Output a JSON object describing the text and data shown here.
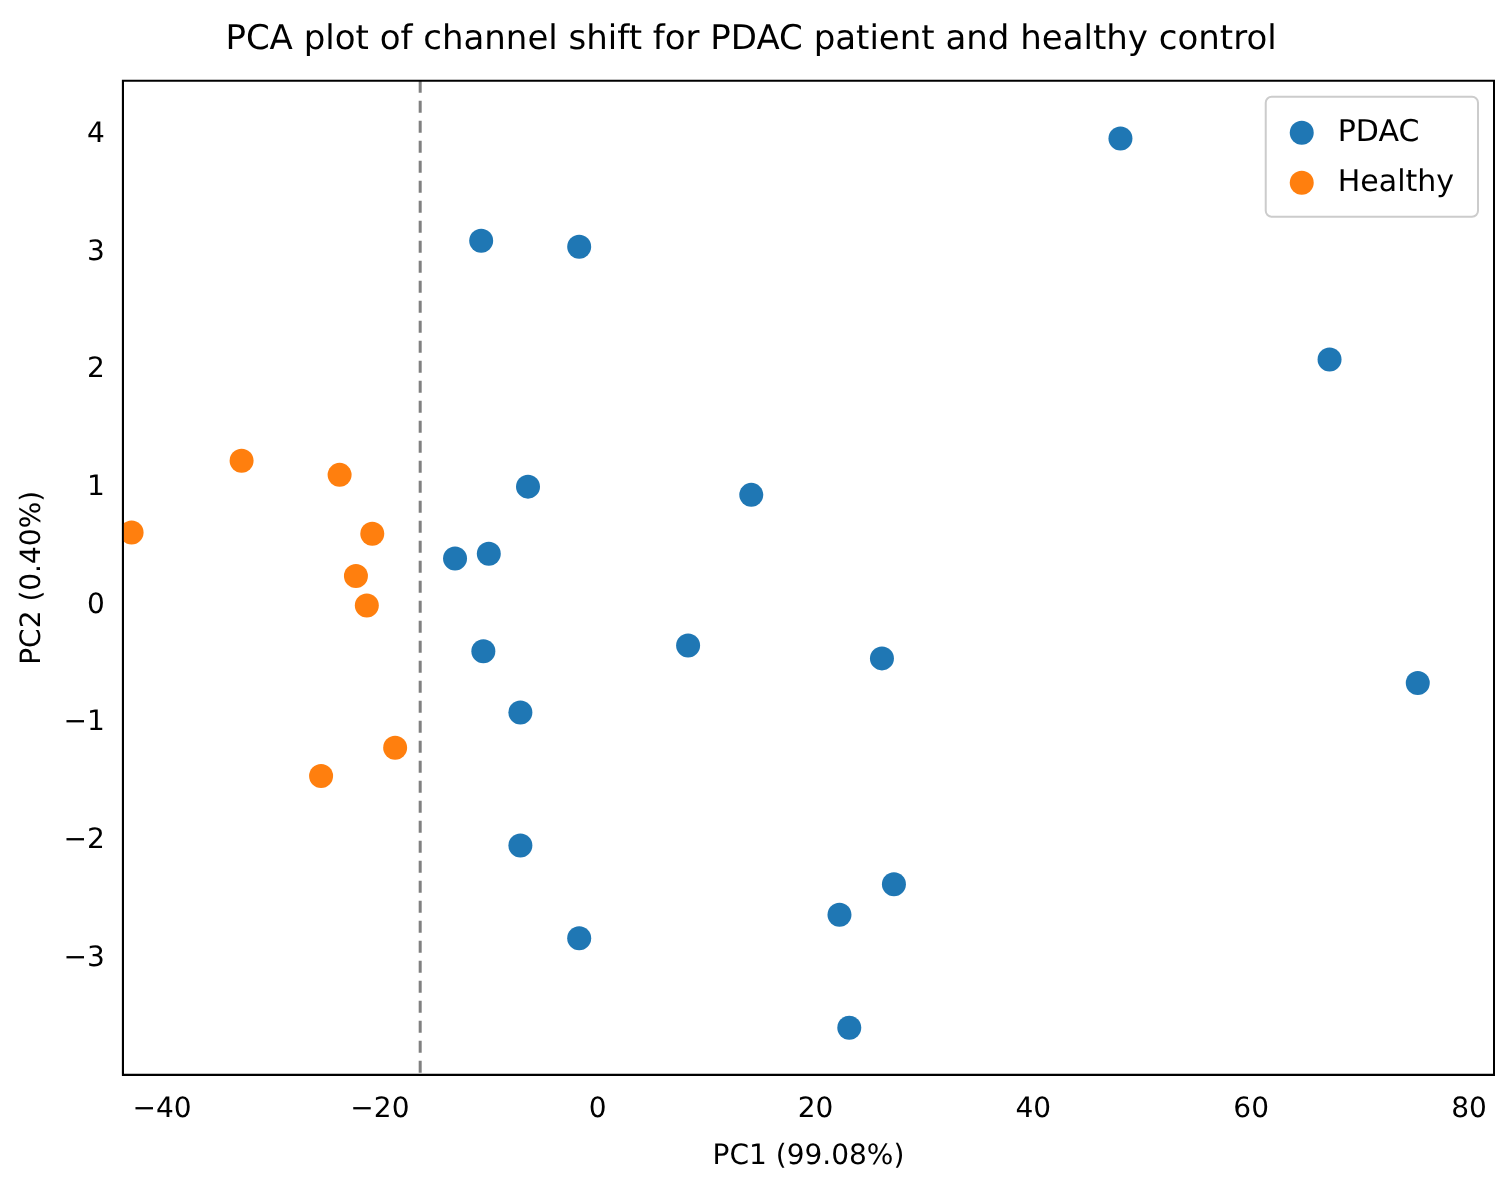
{
  "chart_data": {
    "type": "scatter",
    "title": "PCA plot of channel shift for PDAC patient and healthy control",
    "xlabel": "PC1 (99.08%)",
    "ylabel": "PC2 (0.40%)",
    "xlim": [
      -43.6,
      82.3
    ],
    "xticks": [
      -40,
      -20,
      0,
      20,
      40,
      60,
      80
    ],
    "ylim": [
      -3.99,
      4.46
    ],
    "yticks": [
      -3,
      -2,
      -1,
      0,
      1,
      2,
      3,
      4
    ],
    "grid": false,
    "legend": "top right",
    "marker": "circle",
    "series": [
      {
        "name": "PDAC",
        "color": "#1f77b4",
        "x": [
          48,
          67.2,
          75.3,
          -10.7,
          -1.7,
          -6.4,
          14.1,
          -13.1,
          -10,
          -10.5,
          8.3,
          26.1,
          -7.1,
          -7.1,
          -1.7,
          22.2,
          27.2,
          23.1
        ],
        "values": [
          3.97,
          2.09,
          -0.66,
          3.1,
          3.05,
          1.01,
          0.94,
          0.4,
          0.44,
          -0.39,
          -0.34,
          -0.45,
          -0.91,
          -2.04,
          -2.83,
          -2.63,
          -2.37,
          -3.59
        ]
      },
      {
        "name": "Healthy",
        "color": "#ff7f0e",
        "x": [
          -42.8,
          -32.7,
          -23.7,
          -20.7,
          -22.2,
          -21.2,
          -18.6,
          -25.4
        ],
        "values": [
          0.62,
          1.23,
          1.11,
          0.61,
          0.25,
          0,
          -1.21,
          -1.45
        ]
      }
    ],
    "ref_lines": [
      {
        "axis": "x",
        "value": -16.3,
        "color": "#808080",
        "line_style": "dashed"
      }
    ]
  }
}
